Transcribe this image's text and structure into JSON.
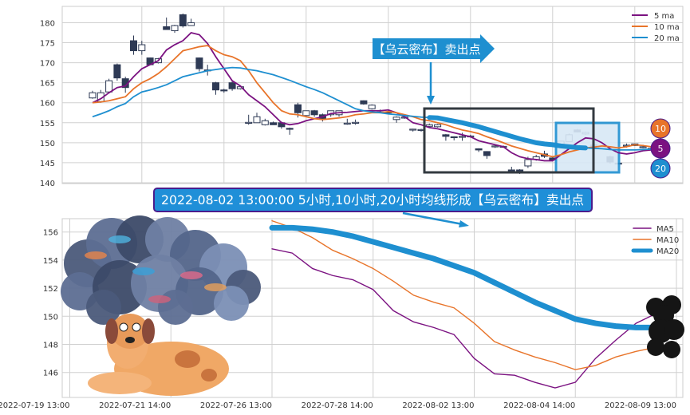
{
  "colors": {
    "ma5": "#7b1281",
    "ma10": "#e8742a",
    "ma20": "#1e8fd0",
    "candle": "#2e3a55",
    "grid": "#d0d0d0",
    "banner": "#1f8fd8",
    "banner_border": "#4a1c8c",
    "highlight_fill": "#d8e8f6"
  },
  "annotations": {
    "signal_label": "【乌云密布】卖出点",
    "banner": "2022-08-02 13:00:00 5小时,10小时,20小时均线形成【乌云密布】卖出点",
    "badges": [
      "10",
      "5",
      "20"
    ]
  },
  "decorations": [
    "storm-cloud-illustration",
    "dog-illustration",
    "dark-cloud-icon"
  ],
  "chart_data": [
    {
      "type": "candlestick",
      "ylim": [
        140,
        183
      ],
      "yticks": [
        140,
        145,
        150,
        155,
        160,
        165,
        170,
        175,
        180
      ],
      "grid": true,
      "legend": {
        "placement": "top-right",
        "entries": [
          "5 ma",
          "10 ma",
          "20 ma"
        ]
      },
      "ohlc": [
        [
          161.2,
          163,
          161,
          162.5
        ],
        [
          160.3,
          163.2,
          160,
          162.5
        ],
        [
          162.7,
          166,
          162.5,
          165.5
        ],
        [
          169.5,
          169.8,
          165.5,
          166.2
        ],
        [
          166,
          166.5,
          162.5,
          163.8
        ],
        [
          175.5,
          176.8,
          172,
          173
        ],
        [
          173,
          175.5,
          172,
          174.5
        ],
        [
          171.2,
          171.3,
          169.5,
          169.5
        ],
        [
          170,
          171.2,
          169.8,
          171
        ],
        [
          179,
          181.3,
          178.2,
          178.3
        ],
        [
          178,
          179.5,
          177.5,
          179.3
        ],
        [
          182,
          182.3,
          178.8,
          179.2
        ],
        [
          179.3,
          181,
          179.2,
          180
        ],
        [
          171.2,
          171.3,
          167.8,
          168.5
        ],
        [
          168.2,
          169.5,
          166.8,
          168
        ],
        [
          165,
          165.2,
          162,
          163.2
        ],
        [
          163.2,
          163.5,
          162.5,
          163
        ],
        [
          165,
          165.5,
          163,
          163.5
        ],
        [
          163.5,
          164.3,
          163.3,
          164
        ],
        [
          155,
          157,
          154.5,
          155.1
        ],
        [
          155,
          157.5,
          155,
          156.5
        ],
        [
          154.5,
          156,
          154.3,
          155.5
        ],
        [
          155,
          155.3,
          154.5,
          154.5
        ],
        [
          155,
          155.3,
          153.5,
          154
        ],
        [
          153.6,
          153.8,
          152,
          153.5
        ],
        [
          159.5,
          160,
          156.3,
          157.5
        ],
        [
          156.8,
          158,
          156.5,
          158
        ],
        [
          158,
          158.2,
          156.5,
          157
        ],
        [
          157,
          157.3,
          155.3,
          156
        ],
        [
          157,
          158,
          156.5,
          158
        ],
        [
          157,
          158,
          156.5,
          158
        ],
        [
          154.8,
          156,
          154.5,
          154.9
        ],
        [
          154.9,
          155.8,
          154.5,
          155.1
        ],
        [
          160.5,
          160.6,
          159.5,
          159.7
        ],
        [
          158.5,
          159.6,
          158.3,
          159.4
        ],
        [
          157.6,
          158.3,
          157.5,
          157.7
        ],
        [
          157.7,
          158.3,
          157.5,
          157.6
        ],
        [
          155.8,
          156.6,
          155,
          156.4
        ],
        [
          156.3,
          156.8,
          156,
          156.4
        ],
        [
          153.4,
          153.5,
          152.8,
          153.4
        ],
        [
          153.3,
          153.5,
          152.8,
          153.3
        ],
        [
          154.1,
          154.8,
          154,
          154.5
        ],
        [
          154,
          154.7,
          153.8,
          154.5
        ],
        [
          152,
          152.2,
          150.5,
          151.6
        ],
        [
          151.5,
          151.6,
          150.6,
          151.4
        ],
        [
          151.5,
          152.5,
          150.5,
          151.6
        ],
        [
          151.6,
          152,
          151.3,
          151.7
        ],
        [
          148.5,
          148.6,
          147.7,
          148.2
        ],
        [
          147.8,
          147.9,
          146,
          146.8
        ],
        [
          149.1,
          149.4,
          148.7,
          149.2
        ],
        [
          149,
          149.3,
          148.8,
          149.1
        ],
        [
          143.2,
          144,
          142.6,
          142.8
        ],
        [
          143.2,
          143.4,
          142.2,
          142.4
        ],
        [
          144.2,
          146.5,
          143.7,
          145.8
        ],
        [
          145.8,
          147,
          145.5,
          146.5
        ],
        [
          147.2,
          148,
          146.2,
          146.6
        ],
        [
          146.2,
          146.5,
          145.5,
          145.7
        ],
        [
          149.5,
          150.5,
          149.4,
          150.4
        ],
        [
          150.3,
          152.3,
          150.2,
          152
        ],
        [
          153.2,
          153.4,
          152.6,
          152.7
        ],
        [
          152.2,
          152.8,
          152,
          152.6
        ],
        [
          149.5,
          149.6,
          148.5,
          148.8
        ],
        [
          148.5,
          149.2,
          148.4,
          149
        ],
        [
          146.5,
          146.8,
          144.8,
          145.2
        ],
        [
          144.7,
          145,
          144.6,
          144.9
        ],
        [
          149.3,
          149.8,
          148.8,
          149.4
        ],
        [
          149.3,
          149.8,
          149.2,
          149.7
        ],
        [
          149,
          149.5,
          148.6,
          149
        ],
        [
          148.5,
          148.8,
          148.3,
          148.6
        ]
      ],
      "series": [
        {
          "name": "5 ma",
          "values": [
            160,
            161,
            162.5,
            163.8,
            164.2,
            166.5,
            168.5,
            169.5,
            170.5,
            173.2,
            174.5,
            175.5,
            177.5,
            177,
            174.8,
            171.5,
            168.5,
            165.5,
            164.2,
            162,
            160.5,
            159,
            157,
            155,
            154.5,
            154.8,
            155.5,
            156,
            156.5,
            157.3,
            157.5,
            157.6,
            157.8,
            158,
            158,
            158,
            158.2,
            157.5,
            156.5,
            155,
            154.5,
            153.8,
            153.5,
            153,
            152.5,
            152,
            151.5,
            150.5,
            150,
            149.5,
            149,
            147.5,
            146.5,
            146,
            145.8,
            145.5,
            145.5,
            147,
            148.5,
            150,
            151.2,
            151,
            150,
            148.5,
            147.5,
            147.2,
            147.5,
            148,
            148.2
          ]
        },
        {
          "name": "10 ma",
          "values": [
            160,
            160.2,
            160.5,
            161,
            161.5,
            163.5,
            165,
            166,
            167.3,
            169,
            171,
            173,
            173.5,
            174,
            174.3,
            173,
            172,
            171.5,
            170.5,
            168,
            165,
            162.5,
            160,
            158,
            157.2,
            157,
            156.5,
            156,
            155.8,
            156,
            156.2,
            156.5,
            157,
            157.2,
            157.5,
            157.5,
            157.8,
            157.5,
            157,
            156.5,
            155.8,
            155.5,
            155,
            154.5,
            153.8,
            153.2,
            152.8,
            152.3,
            151.5,
            150.8,
            150,
            149.2,
            148.6,
            148,
            147.5,
            147,
            146.5,
            147,
            147.7,
            148.2,
            148.7,
            148.9,
            149.2,
            149,
            148.7,
            149,
            149.5,
            149.3,
            149
          ]
        },
        {
          "name": "20 ma",
          "values": [
            156.5,
            157.2,
            158,
            159,
            159.8,
            161.5,
            162.7,
            163.2,
            163.8,
            164.5,
            165.5,
            166.5,
            167,
            167.5,
            168,
            168.3,
            168.6,
            168.8,
            168.7,
            168.3,
            168,
            167.5,
            167,
            166.3,
            165.6,
            164.8,
            164,
            163.3,
            162.5,
            161.5,
            160.5,
            159.5,
            158.5,
            158,
            157.7,
            157.5,
            157.2,
            157,
            156.8,
            156.6,
            156.4,
            156.3,
            156.2,
            155.8,
            155.4,
            155,
            154.5,
            154,
            153.4,
            152.8,
            152.2,
            151.6,
            151,
            150.5,
            150,
            149.7,
            149.5,
            149.2,
            149,
            148.8,
            148.7,
            148.6,
            148.5,
            148.3,
            148.2,
            148.2,
            148.2,
            148.3,
            148.4
          ]
        }
      ]
    },
    {
      "type": "line",
      "ylim": [
        144.3,
        156.9
      ],
      "yticks": [
        146,
        148,
        150,
        152,
        154,
        156
      ],
      "xticklabels": [
        "2022-07-19 13:00",
        "2022-07-21 14:00",
        "2022-07-26 13:00",
        "2022-07-28 14:00",
        "2022-08-02 13:00",
        "2022-08-04 14:00",
        "2022-08-09 13:00"
      ],
      "grid": true,
      "legend": {
        "placement": "top-right",
        "entries": [
          "MA5",
          "MA10",
          "MA20"
        ]
      },
      "series": [
        {
          "name": "MA5",
          "values": [
            154.8,
            154.5,
            153.4,
            152.9,
            152.6,
            151.9,
            150.4,
            149.6,
            149.2,
            148.7,
            147.0,
            145.9,
            145.8,
            145.3,
            144.9,
            145.3,
            147.0,
            148.3,
            149.5,
            150.2
          ]
        },
        {
          "name": "MA10",
          "values": [
            156.8,
            156.3,
            155.6,
            154.7,
            154.1,
            153.4,
            152.5,
            151.5,
            151.0,
            150.6,
            149.5,
            148.2,
            147.6,
            147.1,
            146.7,
            146.2,
            146.5,
            147.1,
            147.5,
            147.8
          ]
        },
        {
          "name": "MA20",
          "values": [
            156.3,
            156.3,
            156.2,
            156.0,
            155.7,
            155.3,
            154.9,
            154.5,
            154.1,
            153.6,
            153.1,
            152.4,
            151.7,
            151.0,
            150.4,
            149.8,
            149.5,
            149.3,
            149.2,
            149.2
          ]
        }
      ]
    }
  ]
}
